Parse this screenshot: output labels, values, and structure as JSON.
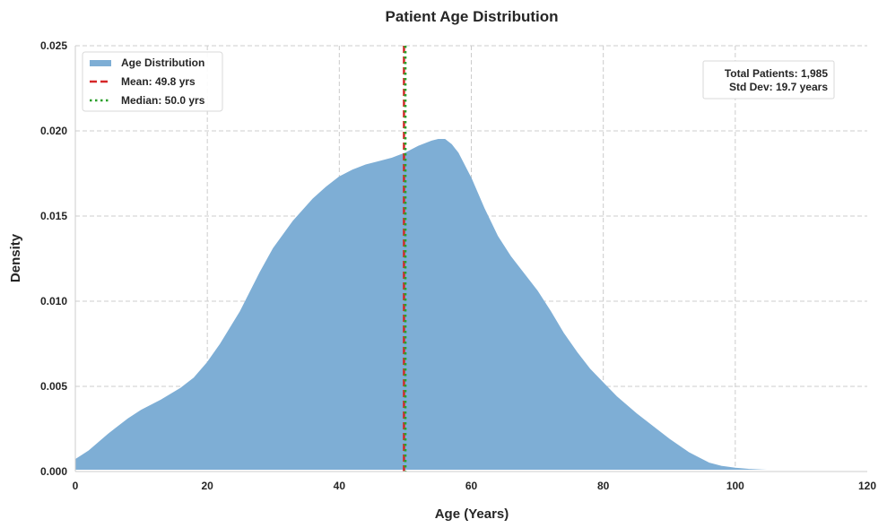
{
  "chart_data": {
    "type": "area",
    "title": "Patient Age Distribution",
    "xlabel": "Age (Years)",
    "ylabel": "Density",
    "xlim": [
      0,
      120
    ],
    "ylim": [
      0,
      0.025
    ],
    "x_ticks": [
      "0",
      "20",
      "40",
      "60",
      "80",
      "100",
      "120"
    ],
    "y_ticks": [
      "0.000",
      "0.005",
      "0.010",
      "0.015",
      "0.020",
      "0.025"
    ],
    "grid": true,
    "legend_position": "top-left",
    "series": [
      {
        "name": "Age Distribution",
        "color": "#7eaed5",
        "x": [
          0,
          2,
          5,
          8,
          10,
          13,
          16,
          18,
          20,
          22,
          25,
          28,
          30,
          33,
          36,
          38,
          40,
          42,
          44,
          46,
          48,
          50,
          52,
          54,
          55,
          56,
          57,
          58,
          60,
          62,
          64,
          66,
          68,
          70,
          72,
          74,
          76,
          78,
          80,
          82,
          85,
          88,
          90,
          93,
          96,
          98,
          100,
          102,
          104,
          106,
          108,
          110,
          112,
          114,
          115
        ],
        "y": [
          0.0007,
          0.0012,
          0.0022,
          0.0031,
          0.0036,
          0.0042,
          0.0049,
          0.0055,
          0.0064,
          0.0075,
          0.0094,
          0.0117,
          0.0131,
          0.0147,
          0.016,
          0.0167,
          0.0173,
          0.0177,
          0.018,
          0.0182,
          0.0184,
          0.0187,
          0.0191,
          0.0194,
          0.0195,
          0.0195,
          0.0192,
          0.0187,
          0.0172,
          0.0154,
          0.0138,
          0.0126,
          0.0116,
          0.0106,
          0.0094,
          0.0081,
          0.007,
          0.006,
          0.0052,
          0.0044,
          0.0034,
          0.0025,
          0.0019,
          0.0011,
          0.0005,
          0.0003,
          0.0002,
          0.00013,
          9e-05,
          6e-05,
          4e-05,
          2e-05,
          1e-05,
          3e-06,
          0.0
        ]
      }
    ],
    "reference_lines": [
      {
        "name": "Mean: 49.8 yrs",
        "x": 49.8,
        "color": "#d62728",
        "style": "dashed"
      },
      {
        "name": "Median: 50.0 yrs",
        "x": 50.0,
        "color": "#2ca02c",
        "style": "dotted"
      }
    ],
    "annotation": {
      "lines": [
        "Total Patients: 1,985",
        "Std Dev: 19.7 years"
      ],
      "position": "top-right"
    }
  }
}
